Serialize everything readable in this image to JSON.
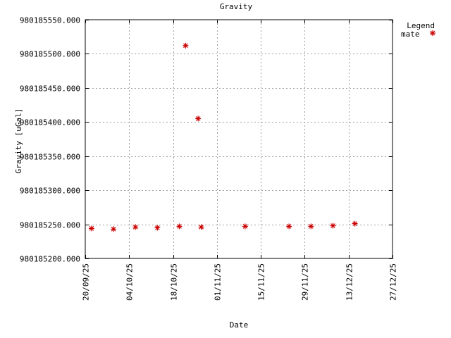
{
  "chart_data": {
    "type": "scatter",
    "title": "Gravity",
    "xlabel": "Date",
    "ylabel": "Gravity [uGal]",
    "ylim": [
      980185200.0,
      980185550.0
    ],
    "yticks": [
      980185200.0,
      980185250.0,
      980185300.0,
      980185350.0,
      980185400.0,
      980185450.0,
      980185500.0,
      980185550.0
    ],
    "ytick_labels": [
      "980185200.000",
      "980185250.000",
      "980185300.000",
      "980185350.000",
      "980185400.000",
      "980185450.000",
      "980185500.000",
      "980185550.000"
    ],
    "xlim": [
      "2025-09-20",
      "2025-12-27"
    ],
    "xticks": [
      "2025-09-20",
      "2025-10-04",
      "2025-10-18",
      "2025-11-01",
      "2025-11-15",
      "2025-11-29",
      "2025-12-13",
      "2025-12-27"
    ],
    "xtick_labels": [
      "20/09/25",
      "04/10/25",
      "18/10/25",
      "01/11/25",
      "15/11/25",
      "29/11/25",
      "13/12/25",
      "27/12/25"
    ],
    "grid": true,
    "legend": {
      "title": "Legend",
      "placement": "top-right, outside plot"
    },
    "series": [
      {
        "name": "mate",
        "color": "#cc0000",
        "marker": "asterisk",
        "points": [
          {
            "x": "2025-09-22",
            "y": 980185244
          },
          {
            "x": "2025-09-29",
            "y": 980185243
          },
          {
            "x": "2025-10-06",
            "y": 980185246
          },
          {
            "x": "2025-10-13",
            "y": 980185245
          },
          {
            "x": "2025-10-20",
            "y": 980185247
          },
          {
            "x": "2025-10-22",
            "y": 980185512
          },
          {
            "x": "2025-10-26",
            "y": 980185405
          },
          {
            "x": "2025-10-27",
            "y": 980185246
          },
          {
            "x": "2025-11-10",
            "y": 980185247
          },
          {
            "x": "2025-11-24",
            "y": 980185247
          },
          {
            "x": "2025-12-01",
            "y": 980185247
          },
          {
            "x": "2025-12-08",
            "y": 980185248
          },
          {
            "x": "2025-12-15",
            "y": 980185251
          }
        ]
      }
    ]
  }
}
